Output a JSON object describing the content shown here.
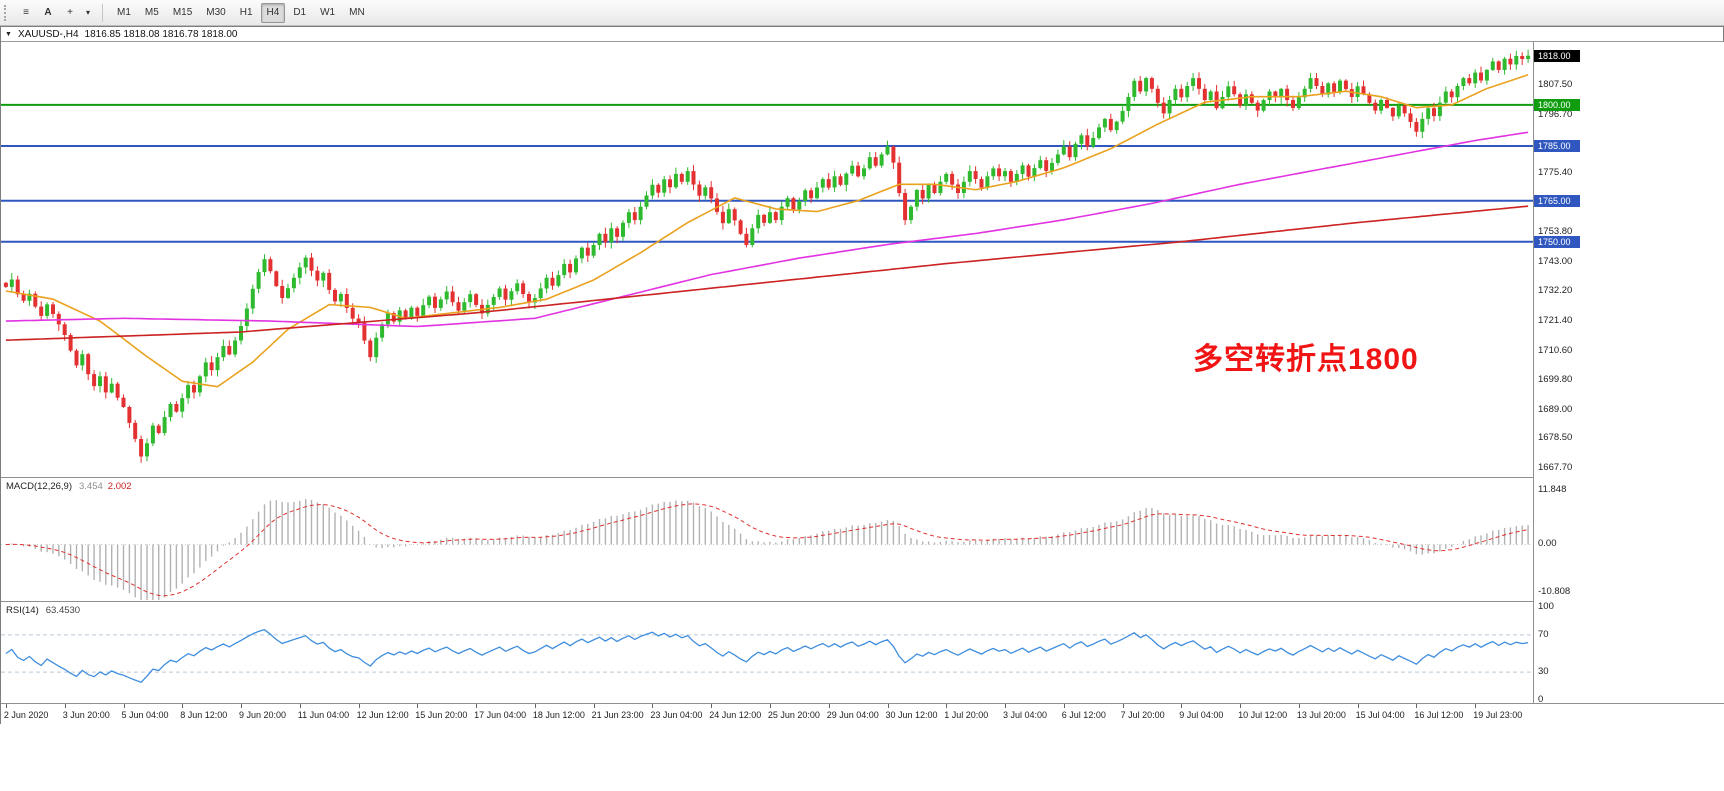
{
  "toolbar": {
    "icons": {
      "menu": "≡",
      "annotate": "A",
      "crosshair": "+",
      "caret": "▾"
    },
    "timeframes": [
      "M1",
      "M5",
      "M15",
      "M30",
      "H1",
      "H4",
      "D1",
      "W1",
      "MN"
    ],
    "active_timeframe": "H4"
  },
  "chart": {
    "collapse_icon": "▼",
    "title_symbol": "XAUUSD-,H4",
    "title_ohlc": "1816.85 1818.08 1816.78 1818.00",
    "annotation": {
      "text": "多空转折点1800",
      "color": "#f01414"
    }
  },
  "macd": {
    "label": "MACD(12,26,9)",
    "value1": "3.454",
    "value2": "2.002",
    "axis": [
      {
        "v": 11.848,
        "t": "11.848"
      },
      {
        "v": 0,
        "t": "0.00"
      },
      {
        "v": -10.808,
        "t": "-10.808"
      }
    ]
  },
  "rsi": {
    "label": "RSI(14)",
    "value": "63.4530",
    "axis": [
      {
        "v": 100,
        "t": "100"
      },
      {
        "v": 70,
        "t": "70"
      },
      {
        "v": 30,
        "t": "30"
      },
      {
        "v": 0,
        "t": "0"
      }
    ]
  },
  "chart_data": [
    {
      "type": "candlestick",
      "symbol": "XAUUSD-",
      "timeframe": "H4",
      "ylim": [
        1664,
        1823
      ],
      "open_first": 1735.0,
      "up_color": "#2eb92e",
      "down_color": "#e33030",
      "closes": [
        1733.5,
        1736.2,
        1730.8,
        1728.4,
        1731.0,
        1726.3,
        1722.9,
        1727.1,
        1723.6,
        1719.8,
        1715.9,
        1710.2,
        1704.8,
        1708.9,
        1701.6,
        1697.2,
        1700.8,
        1694.9,
        1698.1,
        1693.0,
        1689.6,
        1683.8,
        1677.9,
        1671.5,
        1676.3,
        1682.8,
        1680.1,
        1685.9,
        1690.7,
        1687.9,
        1692.8,
        1697.6,
        1694.9,
        1700.8,
        1705.9,
        1703.1,
        1707.8,
        1711.9,
        1708.8,
        1713.9,
        1719.2,
        1725.6,
        1732.8,
        1738.9,
        1743.6,
        1739.2,
        1733.8,
        1729.4,
        1733.0,
        1736.8,
        1740.6,
        1744.2,
        1739.4,
        1735.8,
        1738.6,
        1732.4,
        1728.2,
        1730.9,
        1725.8,
        1721.9,
        1720.4,
        1713.9,
        1707.8,
        1714.9,
        1719.8,
        1723.9,
        1720.8,
        1724.9,
        1721.8,
        1725.9,
        1722.9,
        1726.8,
        1729.9,
        1725.8,
        1728.9,
        1731.8,
        1727.9,
        1724.8,
        1727.9,
        1730.8,
        1726.9,
        1723.8,
        1726.9,
        1729.8,
        1732.9,
        1728.8,
        1731.9,
        1734.8,
        1730.9,
        1727.8,
        1729.4,
        1732.9,
        1736.8,
        1733.9,
        1737.8,
        1741.9,
        1738.8,
        1743.9,
        1747.8,
        1744.9,
        1748.8,
        1752.9,
        1749.8,
        1754.9,
        1751.8,
        1756.9,
        1760.8,
        1757.9,
        1762.8,
        1766.9,
        1770.8,
        1767.9,
        1772.8,
        1769.9,
        1774.8,
        1771.9,
        1775.8,
        1770.9,
        1766.8,
        1769.9,
        1765.8,
        1760.9,
        1756.8,
        1761.9,
        1757.8,
        1752.9,
        1748.8,
        1754.9,
        1759.8,
        1756.9,
        1760.8,
        1757.9,
        1762.8,
        1765.9,
        1761.8,
        1764.9,
        1768.8,
        1765.9,
        1769.8,
        1772.9,
        1769.8,
        1773.9,
        1770.8,
        1774.9,
        1777.8,
        1773.9,
        1776.8,
        1780.9,
        1777.8,
        1781.9,
        1784.8,
        1778.9,
        1767.8,
        1757.9,
        1762.8,
        1768.9,
        1765.8,
        1770.9,
        1767.8,
        1771.9,
        1774.8,
        1770.9,
        1767.8,
        1771.9,
        1775.8,
        1772.9,
        1769.8,
        1773.9,
        1776.8,
        1773.9,
        1775.8,
        1771.9,
        1774.8,
        1777.9,
        1773.8,
        1776.9,
        1779.8,
        1775.9,
        1778.8,
        1781.9,
        1784.8,
        1780.9,
        1785.8,
        1788.9,
        1784.8,
        1787.9,
        1791.8,
        1794.9,
        1790.8,
        1793.9,
        1797.8,
        1802.9,
        1808.8,
        1804.9,
        1809.8,
        1805.9,
        1800.8,
        1796.9,
        1801.8,
        1805.9,
        1802.8,
        1806.9,
        1809.8,
        1805.9,
        1801.8,
        1804.9,
        1798.8,
        1802.9,
        1806.8,
        1803.9,
        1799.8,
        1803.9,
        1800.8,
        1797.9,
        1801.8,
        1804.9,
        1802.8,
        1805.9,
        1801.8,
        1798.9,
        1802.8,
        1805.9,
        1809.8,
        1806.9,
        1803.8,
        1807.9,
        1804.8,
        1808.9,
        1805.8,
        1802.9,
        1806.8,
        1803.9,
        1800.8,
        1797.9,
        1801.8,
        1798.9,
        1795.8,
        1799.8,
        1796.9,
        1793.8,
        1790.2,
        1794.9,
        1798.8,
        1795.9,
        1800.8,
        1804.9,
        1802.8,
        1806.9,
        1809.8,
        1807.9,
        1811.8,
        1808.9,
        1812.8,
        1815.9,
        1812.8,
        1816.9,
        1814.8,
        1817.9,
        1816.8,
        1818.0
      ],
      "overlays": [
        {
          "name": "ma-fast",
          "color": "#eaa21e",
          "points": [
            [
              0,
              1732
            ],
            [
              8,
              1729
            ],
            [
              16,
              1721
            ],
            [
              24,
              1708
            ],
            [
              30,
              1699
            ],
            [
              36,
              1697
            ],
            [
              42,
              1706
            ],
            [
              48,
              1718
            ],
            [
              55,
              1727
            ],
            [
              62,
              1726
            ],
            [
              68,
              1722
            ],
            [
              76,
              1724
            ],
            [
              84,
              1726
            ],
            [
              92,
              1729
            ],
            [
              100,
              1736
            ],
            [
              108,
              1746
            ],
            [
              116,
              1757
            ],
            [
              124,
              1766
            ],
            [
              131,
              1762
            ],
            [
              138,
              1761
            ],
            [
              145,
              1765
            ],
            [
              152,
              1771
            ],
            [
              158,
              1771
            ],
            [
              165,
              1769
            ],
            [
              172,
              1772
            ],
            [
              180,
              1777
            ],
            [
              188,
              1784
            ],
            [
              196,
              1793
            ],
            [
              204,
              1801
            ],
            [
              212,
              1803
            ],
            [
              220,
              1803
            ],
            [
              228,
              1805
            ],
            [
              234,
              1803
            ],
            [
              240,
              1799
            ],
            [
              246,
              1800
            ],
            [
              252,
              1806
            ],
            [
              259,
              1811
            ]
          ]
        },
        {
          "name": "ma-mid",
          "color": "#e233e2",
          "points": [
            [
              0,
              1721
            ],
            [
              20,
              1722
            ],
            [
              45,
              1721
            ],
            [
              70,
              1719
            ],
            [
              90,
              1722
            ],
            [
              105,
              1730
            ],
            [
              120,
              1738
            ],
            [
              135,
              1744
            ],
            [
              150,
              1749
            ],
            [
              165,
              1753
            ],
            [
              180,
              1758
            ],
            [
              195,
              1764
            ],
            [
              210,
              1771
            ],
            [
              225,
              1777
            ],
            [
              240,
              1783
            ],
            [
              250,
              1787
            ],
            [
              259,
              1790
            ]
          ]
        },
        {
          "name": "ma-slow",
          "color": "#cc2222",
          "points": [
            [
              0,
              1714
            ],
            [
              40,
              1717
            ],
            [
              80,
              1724
            ],
            [
              120,
              1733
            ],
            [
              160,
              1742
            ],
            [
              200,
              1750
            ],
            [
              230,
              1757
            ],
            [
              259,
              1763
            ]
          ]
        }
      ],
      "hlines": [
        {
          "price": 1800,
          "color": "#0f9d0f"
        },
        {
          "price": 1785,
          "color": "#3057c0"
        },
        {
          "price": 1765,
          "color": "#3057c0"
        },
        {
          "price": 1750,
          "color": "#3057c0"
        }
      ],
      "y_ticks": [
        1807.5,
        1796.7,
        1775.4,
        1753.8,
        1743.0,
        1732.2,
        1721.4,
        1710.6,
        1699.8,
        1689.0,
        1678.5,
        1667.7
      ],
      "x_labels": [
        {
          "i": 0,
          "t": "2 Jun 2020"
        },
        {
          "i": 10,
          "t": "3 Jun 20:00"
        },
        {
          "i": 20,
          "t": "5 Jun 04:00"
        },
        {
          "i": 30,
          "t": "8 Jun 12:00"
        },
        {
          "i": 40,
          "t": "9 Jun 20:00"
        },
        {
          "i": 50,
          "t": "11 Jun 04:00"
        },
        {
          "i": 60,
          "t": "12 Jun 12:00"
        },
        {
          "i": 70,
          "t": "15 Jun 20:00"
        },
        {
          "i": 80,
          "t": "17 Jun 04:00"
        },
        {
          "i": 90,
          "t": "18 Jun 12:00"
        },
        {
          "i": 100,
          "t": "21 Jun 23:00"
        },
        {
          "i": 110,
          "t": "23 Jun 04:00"
        },
        {
          "i": 120,
          "t": "24 Jun 12:00"
        },
        {
          "i": 130,
          "t": "25 Jun 20:00"
        },
        {
          "i": 140,
          "t": "29 Jun 04:00"
        },
        {
          "i": 150,
          "t": "30 Jun 12:00"
        },
        {
          "i": 160,
          "t": "1 Jul 20:00"
        },
        {
          "i": 170,
          "t": "3 Jul 04:00"
        },
        {
          "i": 180,
          "t": "6 Jul 12:00"
        },
        {
          "i": 190,
          "t": "7 Jul 20:00"
        },
        {
          "i": 200,
          "t": "9 Jul 04:00"
        },
        {
          "i": 210,
          "t": "10 Jul 12:00"
        },
        {
          "i": 220,
          "t": "13 Jul 20:00"
        },
        {
          "i": 230,
          "t": "15 Jul 04:00"
        },
        {
          "i": 240,
          "t": "16 Jul 12:00"
        },
        {
          "i": 250,
          "t": "19 Jul 23:00"
        }
      ]
    },
    {
      "type": "bar",
      "name": "MACD",
      "params": [
        12,
        26,
        9
      ],
      "source": "closes",
      "current_macd": 3.454,
      "current_signal": 2.002,
      "ylim": [
        -12.6,
        14.6
      ]
    },
    {
      "type": "line",
      "name": "RSI",
      "params": [
        14
      ],
      "source": "closes",
      "current": 63.453,
      "ylim": [
        0,
        100
      ],
      "levels": [
        70,
        30
      ]
    }
  ]
}
